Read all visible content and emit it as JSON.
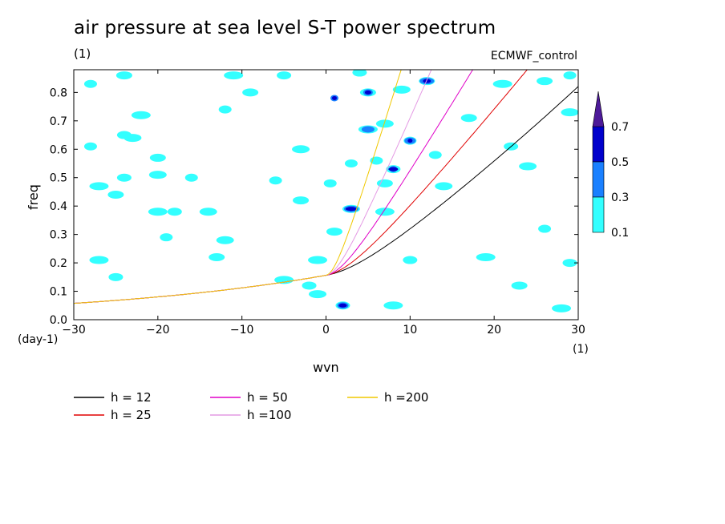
{
  "title": "air pressure at sea level S-T power spectrum",
  "subtitle": "(1)",
  "run_label": "ECMWF_control",
  "chart_data": {
    "type": "heatmap",
    "xlabel": "wvn",
    "ylabel": "freq",
    "x_unit": "(1)",
    "y_unit": "(day-1)",
    "xlim": [
      -30,
      30
    ],
    "ylim": [
      0,
      0.88
    ],
    "xticks": [
      -30,
      -20,
      -10,
      0,
      10,
      20,
      30
    ],
    "yticks": [
      0.0,
      0.1,
      0.2,
      0.3,
      0.4,
      0.5,
      0.6,
      0.7,
      0.8
    ],
    "colorbar": {
      "levels": [
        "0.1",
        "0.3",
        "0.5",
        "0.7"
      ],
      "colors": [
        "#33ffff",
        "#1a80ff",
        "#0000cc",
        "#4d1a99"
      ]
    },
    "dispersion_curves": [
      {
        "name": "h = 12",
        "h": 12,
        "color": "#000000"
      },
      {
        "name": "h = 25",
        "h": 25,
        "color": "#e00000"
      },
      {
        "name": "h = 50",
        "h": 50,
        "color": "#e000c8"
      },
      {
        "name": "h =100",
        "h": 100,
        "color": "#e49ae4"
      },
      {
        "name": "h =200",
        "h": 200,
        "color": "#f0c800"
      }
    ],
    "contour_blobs": [
      {
        "x": -28,
        "y": 0.83,
        "level": 0.1
      },
      {
        "x": -24,
        "y": 0.86,
        "level": 0.1
      },
      {
        "x": -22,
        "y": 0.72,
        "level": 0.1
      },
      {
        "x": -24,
        "y": 0.65,
        "level": 0.1
      },
      {
        "x": -23,
        "y": 0.64,
        "level": 0.1
      },
      {
        "x": -28,
        "y": 0.61,
        "level": 0.1
      },
      {
        "x": -20,
        "y": 0.57,
        "level": 0.1
      },
      {
        "x": -27,
        "y": 0.47,
        "level": 0.1
      },
      {
        "x": -24,
        "y": 0.5,
        "level": 0.1
      },
      {
        "x": -20,
        "y": 0.51,
        "level": 0.1
      },
      {
        "x": -16,
        "y": 0.5,
        "level": 0.1
      },
      {
        "x": -25,
        "y": 0.44,
        "level": 0.1
      },
      {
        "x": -20,
        "y": 0.38,
        "level": 0.1
      },
      {
        "x": -18,
        "y": 0.38,
        "level": 0.1
      },
      {
        "x": -14,
        "y": 0.38,
        "level": 0.1
      },
      {
        "x": -19,
        "y": 0.29,
        "level": 0.1
      },
      {
        "x": -13,
        "y": 0.22,
        "level": 0.1
      },
      {
        "x": -27,
        "y": 0.21,
        "level": 0.1
      },
      {
        "x": -25,
        "y": 0.15,
        "level": 0.1
      },
      {
        "x": -12,
        "y": 0.28,
        "level": 0.1
      },
      {
        "x": -12,
        "y": 0.74,
        "level": 0.1
      },
      {
        "x": -9,
        "y": 0.8,
        "level": 0.1
      },
      {
        "x": -11,
        "y": 0.86,
        "level": 0.1
      },
      {
        "x": -5,
        "y": 0.86,
        "level": 0.1
      },
      {
        "x": -3,
        "y": 0.6,
        "level": 0.1
      },
      {
        "x": -6,
        "y": 0.49,
        "level": 0.1
      },
      {
        "x": -3,
        "y": 0.42,
        "level": 0.1
      },
      {
        "x": -5,
        "y": 0.14,
        "level": 0.1
      },
      {
        "x": -2,
        "y": 0.12,
        "level": 0.1
      },
      {
        "x": -1,
        "y": 0.09,
        "level": 0.1
      },
      {
        "x": 1,
        "y": 0.78,
        "level": 0.3
      },
      {
        "x": 1,
        "y": 0.78,
        "level": 0.5
      },
      {
        "x": 0.5,
        "y": 0.48,
        "level": 0.1
      },
      {
        "x": 1,
        "y": 0.31,
        "level": 0.1
      },
      {
        "x": -1,
        "y": 0.21,
        "level": 0.1
      },
      {
        "x": 2,
        "y": 0.05,
        "level": 0.1
      },
      {
        "x": 2,
        "y": 0.05,
        "level": 0.3
      },
      {
        "x": 2,
        "y": 0.05,
        "level": 0.5
      },
      {
        "x": 3,
        "y": 0.39,
        "level": 0.1
      },
      {
        "x": 3,
        "y": 0.39,
        "level": 0.3
      },
      {
        "x": 3,
        "y": 0.39,
        "level": 0.5
      },
      {
        "x": 3,
        "y": 0.55,
        "level": 0.1
      },
      {
        "x": 5,
        "y": 0.8,
        "level": 0.1
      },
      {
        "x": 5,
        "y": 0.8,
        "level": 0.3
      },
      {
        "x": 5,
        "y": 0.8,
        "level": 0.5
      },
      {
        "x": 5,
        "y": 0.67,
        "level": 0.1
      },
      {
        "x": 5,
        "y": 0.67,
        "level": 0.3
      },
      {
        "x": 4,
        "y": 0.87,
        "level": 0.1
      },
      {
        "x": 7,
        "y": 0.69,
        "level": 0.1
      },
      {
        "x": 6,
        "y": 0.56,
        "level": 0.1
      },
      {
        "x": 7,
        "y": 0.48,
        "level": 0.1
      },
      {
        "x": 7,
        "y": 0.38,
        "level": 0.1
      },
      {
        "x": 8,
        "y": 0.53,
        "level": 0.1
      },
      {
        "x": 8,
        "y": 0.53,
        "level": 0.3
      },
      {
        "x": 8,
        "y": 0.53,
        "level": 0.5
      },
      {
        "x": 9,
        "y": 0.81,
        "level": 0.1
      },
      {
        "x": 10,
        "y": 0.63,
        "level": 0.1
      },
      {
        "x": 10,
        "y": 0.63,
        "level": 0.3
      },
      {
        "x": 10,
        "y": 0.63,
        "level": 0.5
      },
      {
        "x": 12,
        "y": 0.84,
        "level": 0.1
      },
      {
        "x": 12,
        "y": 0.84,
        "level": 0.3
      },
      {
        "x": 12,
        "y": 0.84,
        "level": 0.5
      },
      {
        "x": 8,
        "y": 0.05,
        "level": 0.1
      },
      {
        "x": 10,
        "y": 0.21,
        "level": 0.1
      },
      {
        "x": 14,
        "y": 0.47,
        "level": 0.1
      },
      {
        "x": 13,
        "y": 0.58,
        "level": 0.1
      },
      {
        "x": 17,
        "y": 0.71,
        "level": 0.1
      },
      {
        "x": 19,
        "y": 0.22,
        "level": 0.1
      },
      {
        "x": 22,
        "y": 0.61,
        "level": 0.1
      },
      {
        "x": 24,
        "y": 0.54,
        "level": 0.1
      },
      {
        "x": 26,
        "y": 0.32,
        "level": 0.1
      },
      {
        "x": 23,
        "y": 0.12,
        "level": 0.1
      },
      {
        "x": 28,
        "y": 0.04,
        "level": 0.1
      },
      {
        "x": 29,
        "y": 0.2,
        "level": 0.1
      },
      {
        "x": 29,
        "y": 0.73,
        "level": 0.1
      },
      {
        "x": 29,
        "y": 0.86,
        "level": 0.1
      },
      {
        "x": 26,
        "y": 0.84,
        "level": 0.1
      },
      {
        "x": 21,
        "y": 0.83,
        "level": 0.1
      }
    ]
  }
}
